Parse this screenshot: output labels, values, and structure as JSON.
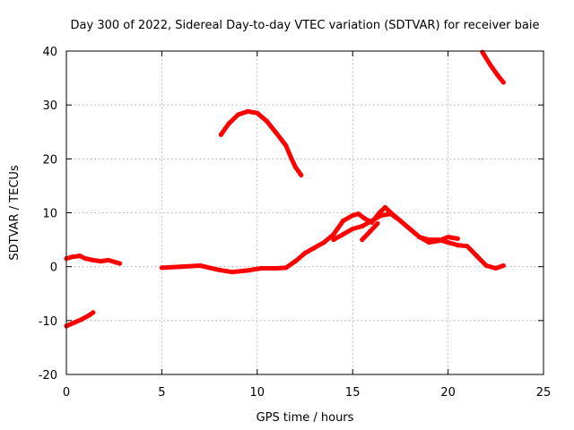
{
  "chart_data": {
    "type": "line",
    "title": "Day 300 of 2022, Sidereal Day-to-day VTEC variation (SDTVAR) for receiver baie",
    "xlabel": "GPS time / hours",
    "ylabel": "SDTVAR / TECUs",
    "xlim": [
      0,
      25
    ],
    "ylim": [
      -20,
      40
    ],
    "xticks": [
      "0",
      "5",
      "10",
      "15",
      "20",
      "25"
    ],
    "yticks": [
      "-20",
      "-10",
      "0",
      "10",
      "20",
      "30",
      "40"
    ],
    "grid": true,
    "legend": "none",
    "colors": {
      "series": "#ff0000",
      "grid": "#a0a0a0",
      "frame": "#000000"
    },
    "series": [
      {
        "name": "segment-1",
        "x": [
          0.0,
          0.3,
          0.7,
          1.0,
          1.4,
          1.8,
          2.2,
          2.6,
          2.8
        ],
        "y": [
          1.5,
          1.8,
          2.0,
          1.5,
          1.2,
          1.0,
          1.2,
          0.8,
          0.6
        ]
      },
      {
        "name": "segment-2",
        "x": [
          0.0,
          0.4,
          0.8,
          1.2,
          1.4
        ],
        "y": [
          -11.0,
          -10.4,
          -9.8,
          -9.0,
          -8.5
        ]
      },
      {
        "name": "segment-3",
        "x": [
          5.0,
          6.0,
          7.0,
          8.0,
          8.7,
          9.5,
          10.2,
          11.0,
          11.5,
          12.0,
          12.5,
          13.0,
          13.5,
          14.0,
          14.5,
          15.0,
          15.3,
          15.6,
          16.0,
          16.4,
          16.7,
          17.0,
          17.5,
          18.0,
          18.5,
          19.0,
          19.5,
          20.0,
          20.5,
          21.0,
          21.5,
          22.0,
          22.5,
          22.9
        ],
        "y": [
          -0.2,
          0.0,
          0.2,
          -0.6,
          -1.0,
          -0.7,
          -0.3,
          -0.3,
          -0.2,
          1.0,
          2.5,
          3.5,
          4.5,
          6.0,
          8.5,
          9.5,
          9.8,
          9.0,
          8.2,
          10.0,
          11.0,
          10.0,
          8.5,
          7.0,
          5.5,
          5.0,
          5.0,
          4.5,
          4.0,
          3.8,
          2.0,
          0.2,
          -0.3,
          0.2
        ]
      },
      {
        "name": "segment-4",
        "x": [
          14.0,
          14.5,
          15.0,
          15.5,
          16.0,
          16.5,
          17.0,
          17.5,
          18.0,
          18.5,
          19.0,
          19.5,
          20.0,
          20.5
        ],
        "y": [
          5.0,
          6.0,
          7.0,
          7.5,
          8.5,
          9.5,
          9.8,
          8.5,
          7.0,
          5.5,
          4.5,
          4.8,
          5.5,
          5.2
        ]
      },
      {
        "name": "segment-5",
        "x": [
          15.5,
          15.9,
          16.3
        ],
        "y": [
          5.0,
          6.5,
          8.0
        ]
      },
      {
        "name": "segment-6",
        "x": [
          8.1,
          8.5,
          9.0,
          9.5,
          10.0,
          10.5,
          11.0,
          11.5,
          11.8,
          12.0,
          12.3
        ],
        "y": [
          24.5,
          26.5,
          28.2,
          28.8,
          28.5,
          27.0,
          24.8,
          22.5,
          20.0,
          18.5,
          17.0
        ]
      },
      {
        "name": "segment-7",
        "x": [
          21.8,
          22.2,
          22.6,
          22.9
        ],
        "y": [
          39.8,
          37.5,
          35.5,
          34.2
        ]
      }
    ]
  }
}
